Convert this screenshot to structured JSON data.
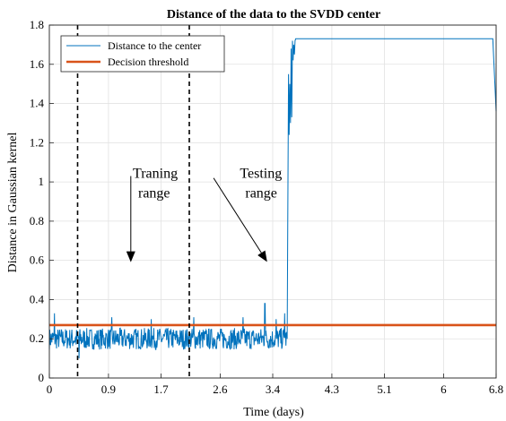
{
  "chart_data": {
    "type": "line",
    "title": "Distance of the data to the SVDD center",
    "xlabel": "Time (days)",
    "ylabel": "Distance in Gaussian kernel",
    "xlim": [
      0,
      6.8
    ],
    "ylim": [
      0,
      1.8
    ],
    "x_ticks": [
      0,
      0.9,
      1.7,
      2.6,
      3.4,
      4.3,
      5.1,
      6,
      6.8
    ],
    "x_tick_labels": [
      "0",
      "0.9",
      "1.7",
      "2.6",
      "3.4",
      "4.3",
      "5.1",
      "6",
      "6.8"
    ],
    "y_ticks": [
      0,
      0.2,
      0.4,
      0.6,
      0.8,
      1,
      1.2,
      1.4,
      1.6,
      1.8
    ],
    "y_tick_labels": [
      "0",
      "0.2",
      "0.4",
      "0.6",
      "0.8",
      "1",
      "1.2",
      "1.4",
      "1.6",
      "1.8"
    ],
    "grid": true,
    "legend_position": "top-left",
    "series": [
      {
        "name": "Distance to the center",
        "color": "#0072BD",
        "segments": [
          {
            "x_range": [
              0,
              3.62
            ],
            "baseline": 0.2,
            "noise_amplitude": 0.055,
            "spikes": [
              [
                0.08,
                0.33
              ],
              [
                0.45,
                0.1
              ],
              [
                0.95,
                0.31
              ],
              [
                1.55,
                0.3
              ],
              [
                2.2,
                0.31
              ],
              [
                2.95,
                0.31
              ],
              [
                3.28,
                0.38
              ],
              [
                3.45,
                0.3
              ],
              [
                3.58,
                0.33
              ]
            ]
          },
          {
            "x": [
              3.62,
              3.64,
              3.65,
              3.66,
              3.67,
              3.68,
              3.69,
              3.7,
              3.71,
              3.72,
              3.73,
              3.74,
              3.75,
              3.8,
              6.75,
              6.8
            ],
            "y": [
              0.2,
              1.55,
              1.24,
              1.5,
              1.3,
              1.68,
              1.33,
              1.72,
              1.62,
              1.7,
              1.65,
              1.72,
              1.73,
              1.73,
              1.73,
              1.36
            ]
          }
        ]
      },
      {
        "name": "Decision threshold",
        "color": "#D95319",
        "x": [
          0,
          6.8
        ],
        "y": [
          0.27,
          0.27
        ]
      }
    ],
    "vertical_lines": [
      {
        "x": 0.43,
        "style": "dashed",
        "color": "#000000"
      },
      {
        "x": 2.13,
        "style": "dashed",
        "color": "#000000"
      }
    ],
    "annotations": [
      {
        "text_lines": [
          "Traning",
          "range"
        ],
        "x": 1.27,
        "y": 1.02,
        "arrow_from": [
          1.24,
          1.03
        ],
        "arrow_to": [
          1.24,
          0.6
        ]
      },
      {
        "text_lines": [
          "Testing",
          "range"
        ],
        "x": 2.9,
        "y": 1.02,
        "arrow_from": [
          2.5,
          1.02
        ],
        "arrow_to": [
          3.3,
          0.6
        ]
      }
    ]
  }
}
